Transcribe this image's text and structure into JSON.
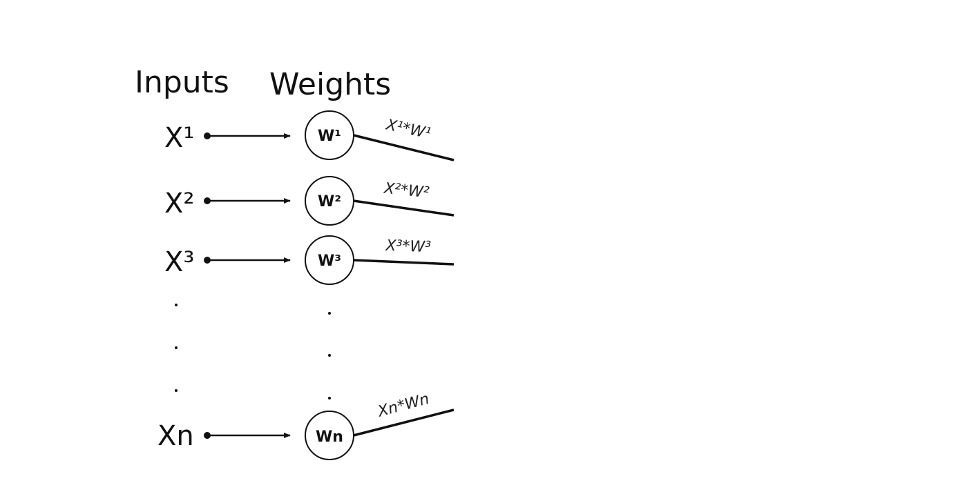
{
  "headings": {
    "inputs": "Inputs",
    "weights": "Weights"
  },
  "rows": [
    {
      "input": "X¹",
      "weight": "W¹",
      "product": "X¹*W¹"
    },
    {
      "input": "X²",
      "weight": "W²",
      "product": "X²*W²"
    },
    {
      "input": "X³",
      "weight": "W³",
      "product": "X³*W³"
    },
    {
      "input": "Xn",
      "weight": "Wn",
      "product": "Xn*Wn"
    }
  ],
  "colors": {
    "ink": "#111111",
    "background": "#ffffff"
  }
}
